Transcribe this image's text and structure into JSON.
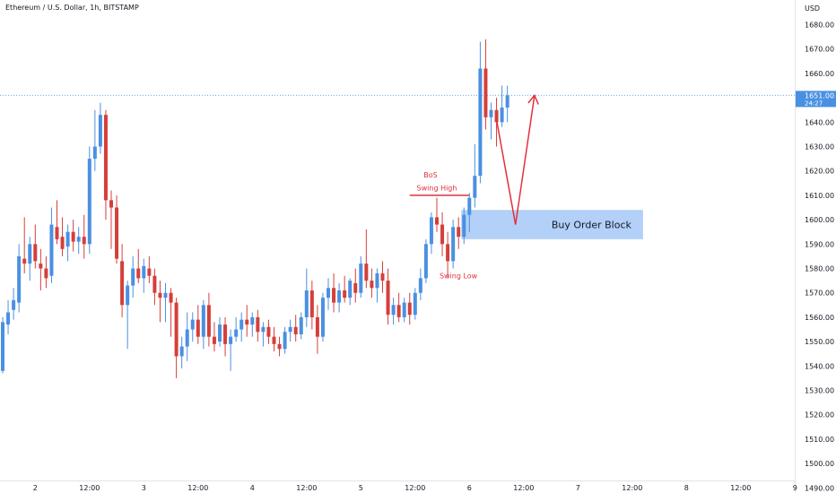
{
  "header": {
    "instrument": "Ethereum / U.S. Dollar",
    "interval": "1h",
    "exchange": "BITSTAMP"
  },
  "chart_data": {
    "type": "candlestick",
    "title": "Ethereum / U.S. Dollar, 1h, BITSTAMP",
    "y_axis": {
      "unit": "USD",
      "ylim": [
        1490,
        1685
      ],
      "ticks": [
        1680,
        1670,
        1660,
        1650,
        1640,
        1630,
        1620,
        1610,
        1600,
        1590,
        1580,
        1570,
        1560,
        1550,
        1540,
        1530,
        1520,
        1510,
        1500,
        1490
      ],
      "tick_labels": [
        "1680.00",
        "1670.00",
        "1660.00",
        "1650.00",
        "1640.00",
        "1630.00",
        "1620.00",
        "1610.00",
        "1600.00",
        "1590.00",
        "1580.00",
        "1570.00",
        "1560.00",
        "1550.00",
        "1540.00",
        "1530.00",
        "1520.00",
        "1510.00",
        "1500.00",
        "1490.00"
      ]
    },
    "x_axis": {
      "bar_range": [
        0,
        145
      ],
      "ticks": [
        {
          "bar": 6,
          "label": "2"
        },
        {
          "bar": 16,
          "label": "12:00"
        },
        {
          "bar": 26,
          "label": "3"
        },
        {
          "bar": 36,
          "label": "12:00"
        },
        {
          "bar": 46,
          "label": "4"
        },
        {
          "bar": 56,
          "label": "12:00"
        },
        {
          "bar": 66,
          "label": "5"
        },
        {
          "bar": 76,
          "label": "12:00"
        },
        {
          "bar": 86,
          "label": "6"
        },
        {
          "bar": 96,
          "label": "12:00"
        },
        {
          "bar": 106,
          "label": "7"
        },
        {
          "bar": 116,
          "label": "12:00"
        },
        {
          "bar": 126,
          "label": "8"
        },
        {
          "bar": 136,
          "label": "12:00"
        },
        {
          "bar": 146,
          "label": "9"
        }
      ]
    },
    "grid": false,
    "colors": {
      "up": "#4a90e2",
      "down": "#d43f3a",
      "annotation": "#e0313e",
      "zone": "#a6c8f7"
    },
    "last_price": {
      "value": 1651.0,
      "label": "1651.00",
      "countdown": "24:27"
    },
    "candles": [
      {
        "bar": 0,
        "o": 1538,
        "h": 1560,
        "l": 1537,
        "c": 1558
      },
      {
        "bar": 1,
        "o": 1557,
        "h": 1567,
        "l": 1553,
        "c": 1562
      },
      {
        "bar": 2,
        "o": 1563,
        "h": 1572,
        "l": 1559,
        "c": 1567
      },
      {
        "bar": 3,
        "o": 1566,
        "h": 1590,
        "l": 1562,
        "c": 1585
      },
      {
        "bar": 4,
        "o": 1584,
        "h": 1601,
        "l": 1578,
        "c": 1582
      },
      {
        "bar": 5,
        "o": 1582,
        "h": 1593,
        "l": 1575,
        "c": 1590
      },
      {
        "bar": 6,
        "o": 1590,
        "h": 1598,
        "l": 1580,
        "c": 1583
      },
      {
        "bar": 7,
        "o": 1582,
        "h": 1588,
        "l": 1571,
        "c": 1580
      },
      {
        "bar": 8,
        "o": 1580,
        "h": 1585,
        "l": 1572,
        "c": 1576
      },
      {
        "bar": 9,
        "o": 1577,
        "h": 1605,
        "l": 1574,
        "c": 1598
      },
      {
        "bar": 10,
        "o": 1597,
        "h": 1608,
        "l": 1590,
        "c": 1592
      },
      {
        "bar": 11,
        "o": 1593,
        "h": 1601,
        "l": 1585,
        "c": 1588
      },
      {
        "bar": 12,
        "o": 1589,
        "h": 1598,
        "l": 1583,
        "c": 1595
      },
      {
        "bar": 13,
        "o": 1595,
        "h": 1600,
        "l": 1587,
        "c": 1591
      },
      {
        "bar": 14,
        "o": 1591,
        "h": 1597,
        "l": 1586,
        "c": 1593
      },
      {
        "bar": 15,
        "o": 1593,
        "h": 1602,
        "l": 1584,
        "c": 1590
      },
      {
        "bar": 16,
        "o": 1590,
        "h": 1630,
        "l": 1586,
        "c": 1625
      },
      {
        "bar": 17,
        "o": 1625,
        "h": 1645,
        "l": 1620,
        "c": 1630
      },
      {
        "bar": 18,
        "o": 1630,
        "h": 1648,
        "l": 1627,
        "c": 1643
      },
      {
        "bar": 19,
        "o": 1643,
        "h": 1645,
        "l": 1600,
        "c": 1608
      },
      {
        "bar": 20,
        "o": 1608,
        "h": 1612,
        "l": 1588,
        "c": 1605
      },
      {
        "bar": 21,
        "o": 1605,
        "h": 1610,
        "l": 1582,
        "c": 1584
      },
      {
        "bar": 22,
        "o": 1583,
        "h": 1590,
        "l": 1560,
        "c": 1565
      },
      {
        "bar": 23,
        "o": 1565,
        "h": 1575,
        "l": 1547,
        "c": 1573
      },
      {
        "bar": 24,
        "o": 1573,
        "h": 1585,
        "l": 1568,
        "c": 1580
      },
      {
        "bar": 25,
        "o": 1580,
        "h": 1588,
        "l": 1574,
        "c": 1576
      },
      {
        "bar": 26,
        "o": 1576,
        "h": 1584,
        "l": 1570,
        "c": 1581
      },
      {
        "bar": 27,
        "o": 1580,
        "h": 1585,
        "l": 1574,
        "c": 1577
      },
      {
        "bar": 28,
        "o": 1577,
        "h": 1580,
        "l": 1565,
        "c": 1570
      },
      {
        "bar": 29,
        "o": 1570,
        "h": 1575,
        "l": 1558,
        "c": 1568
      },
      {
        "bar": 30,
        "o": 1568,
        "h": 1574,
        "l": 1558,
        "c": 1570
      },
      {
        "bar": 31,
        "o": 1570,
        "h": 1572,
        "l": 1552,
        "c": 1566
      },
      {
        "bar": 32,
        "o": 1566,
        "h": 1568,
        "l": 1535,
        "c": 1544
      },
      {
        "bar": 33,
        "o": 1544,
        "h": 1552,
        "l": 1539,
        "c": 1548
      },
      {
        "bar": 34,
        "o": 1548,
        "h": 1562,
        "l": 1542,
        "c": 1555
      },
      {
        "bar": 35,
        "o": 1555,
        "h": 1562,
        "l": 1550,
        "c": 1559
      },
      {
        "bar": 36,
        "o": 1559,
        "h": 1565,
        "l": 1549,
        "c": 1552
      },
      {
        "bar": 37,
        "o": 1552,
        "h": 1567,
        "l": 1547,
        "c": 1565
      },
      {
        "bar": 38,
        "o": 1565,
        "h": 1570,
        "l": 1548,
        "c": 1552
      },
      {
        "bar": 39,
        "o": 1552,
        "h": 1558,
        "l": 1546,
        "c": 1549
      },
      {
        "bar": 40,
        "o": 1550,
        "h": 1560,
        "l": 1548,
        "c": 1557
      },
      {
        "bar": 41,
        "o": 1557,
        "h": 1560,
        "l": 1544,
        "c": 1549
      },
      {
        "bar": 42,
        "o": 1549,
        "h": 1555,
        "l": 1538,
        "c": 1552
      },
      {
        "bar": 43,
        "o": 1552,
        "h": 1560,
        "l": 1550,
        "c": 1555
      },
      {
        "bar": 44,
        "o": 1555,
        "h": 1562,
        "l": 1550,
        "c": 1559
      },
      {
        "bar": 45,
        "o": 1559,
        "h": 1565,
        "l": 1552,
        "c": 1557
      },
      {
        "bar": 46,
        "o": 1557,
        "h": 1562,
        "l": 1552,
        "c": 1560
      },
      {
        "bar": 47,
        "o": 1560,
        "h": 1563,
        "l": 1550,
        "c": 1554
      },
      {
        "bar": 48,
        "o": 1554,
        "h": 1558,
        "l": 1548,
        "c": 1556
      },
      {
        "bar": 49,
        "o": 1556,
        "h": 1559,
        "l": 1549,
        "c": 1552
      },
      {
        "bar": 50,
        "o": 1552,
        "h": 1556,
        "l": 1546,
        "c": 1549
      },
      {
        "bar": 51,
        "o": 1549,
        "h": 1552,
        "l": 1544,
        "c": 1547
      },
      {
        "bar": 52,
        "o": 1547,
        "h": 1556,
        "l": 1545,
        "c": 1554
      },
      {
        "bar": 53,
        "o": 1554,
        "h": 1559,
        "l": 1550,
        "c": 1556
      },
      {
        "bar": 54,
        "o": 1556,
        "h": 1561,
        "l": 1550,
        "c": 1553
      },
      {
        "bar": 55,
        "o": 1553,
        "h": 1562,
        "l": 1551,
        "c": 1560
      },
      {
        "bar": 56,
        "o": 1560,
        "h": 1580,
        "l": 1556,
        "c": 1571
      },
      {
        "bar": 57,
        "o": 1571,
        "h": 1575,
        "l": 1555,
        "c": 1560
      },
      {
        "bar": 58,
        "o": 1560,
        "h": 1565,
        "l": 1545,
        "c": 1552
      },
      {
        "bar": 59,
        "o": 1552,
        "h": 1570,
        "l": 1550,
        "c": 1568
      },
      {
        "bar": 60,
        "o": 1568,
        "h": 1576,
        "l": 1563,
        "c": 1572
      },
      {
        "bar": 61,
        "o": 1572,
        "h": 1578,
        "l": 1562,
        "c": 1566
      },
      {
        "bar": 62,
        "o": 1566,
        "h": 1574,
        "l": 1562,
        "c": 1571
      },
      {
        "bar": 63,
        "o": 1571,
        "h": 1577,
        "l": 1566,
        "c": 1568
      },
      {
        "bar": 64,
        "o": 1568,
        "h": 1576,
        "l": 1565,
        "c": 1575
      },
      {
        "bar": 65,
        "o": 1574,
        "h": 1580,
        "l": 1566,
        "c": 1570
      },
      {
        "bar": 66,
        "o": 1570,
        "h": 1585,
        "l": 1568,
        "c": 1582
      },
      {
        "bar": 67,
        "o": 1582,
        "h": 1596,
        "l": 1572,
        "c": 1575
      },
      {
        "bar": 68,
        "o": 1575,
        "h": 1580,
        "l": 1568,
        "c": 1572
      },
      {
        "bar": 69,
        "o": 1572,
        "h": 1580,
        "l": 1566,
        "c": 1578
      },
      {
        "bar": 70,
        "o": 1578,
        "h": 1583,
        "l": 1570,
        "c": 1575
      },
      {
        "bar": 71,
        "o": 1575,
        "h": 1580,
        "l": 1557,
        "c": 1561
      },
      {
        "bar": 72,
        "o": 1561,
        "h": 1568,
        "l": 1557,
        "c": 1565
      },
      {
        "bar": 73,
        "o": 1565,
        "h": 1570,
        "l": 1558,
        "c": 1560
      },
      {
        "bar": 74,
        "o": 1560,
        "h": 1568,
        "l": 1558,
        "c": 1566
      },
      {
        "bar": 75,
        "o": 1566,
        "h": 1570,
        "l": 1557,
        "c": 1561
      },
      {
        "bar": 76,
        "o": 1561,
        "h": 1572,
        "l": 1559,
        "c": 1570
      },
      {
        "bar": 77,
        "o": 1570,
        "h": 1580,
        "l": 1567,
        "c": 1576
      },
      {
        "bar": 78,
        "o": 1576,
        "h": 1592,
        "l": 1574,
        "c": 1590
      },
      {
        "bar": 79,
        "o": 1590,
        "h": 1603,
        "l": 1586,
        "c": 1601
      },
      {
        "bar": 80,
        "o": 1601,
        "h": 1609,
        "l": 1595,
        "c": 1598
      },
      {
        "bar": 81,
        "o": 1598,
        "h": 1603,
        "l": 1585,
        "c": 1590
      },
      {
        "bar": 82,
        "o": 1590,
        "h": 1595,
        "l": 1576,
        "c": 1583
      },
      {
        "bar": 83,
        "o": 1583,
        "h": 1600,
        "l": 1580,
        "c": 1597
      },
      {
        "bar": 84,
        "o": 1597,
        "h": 1601,
        "l": 1588,
        "c": 1593
      },
      {
        "bar": 85,
        "o": 1593,
        "h": 1605,
        "l": 1590,
        "c": 1602
      },
      {
        "bar": 86,
        "o": 1602,
        "h": 1611,
        "l": 1595,
        "c": 1609
      },
      {
        "bar": 87,
        "o": 1609,
        "h": 1631,
        "l": 1605,
        "c": 1618
      },
      {
        "bar": 88,
        "o": 1618,
        "h": 1673,
        "l": 1615,
        "c": 1662
      },
      {
        "bar": 89,
        "o": 1662,
        "h": 1674,
        "l": 1637,
        "c": 1642
      },
      {
        "bar": 90,
        "o": 1642,
        "h": 1648,
        "l": 1633,
        "c": 1645
      },
      {
        "bar": 91,
        "o": 1645,
        "h": 1650,
        "l": 1630,
        "c": 1640
      },
      {
        "bar": 92,
        "o": 1640,
        "h": 1655,
        "l": 1638,
        "c": 1646
      },
      {
        "bar": 93,
        "o": 1646,
        "h": 1655,
        "l": 1640,
        "c": 1651
      }
    ],
    "annotations": {
      "bos": {
        "label": "BoS",
        "price": 1610,
        "from_bar": 75,
        "to_bar": 86
      },
      "swing_high": {
        "label": "Swing High",
        "bar": 80,
        "price": 1609
      },
      "swing_low": {
        "label": "Swing Low",
        "bar": 82,
        "price": 1576
      },
      "order_block": {
        "label": "Buy Order Block",
        "from_bar": 85,
        "to_bar": 118,
        "price_low": 1592,
        "price_high": 1604
      },
      "projection": [
        {
          "bar": 91,
          "price": 1641
        },
        {
          "bar": 94.5,
          "price": 1598
        },
        {
          "bar": 98,
          "price": 1651
        }
      ]
    }
  }
}
